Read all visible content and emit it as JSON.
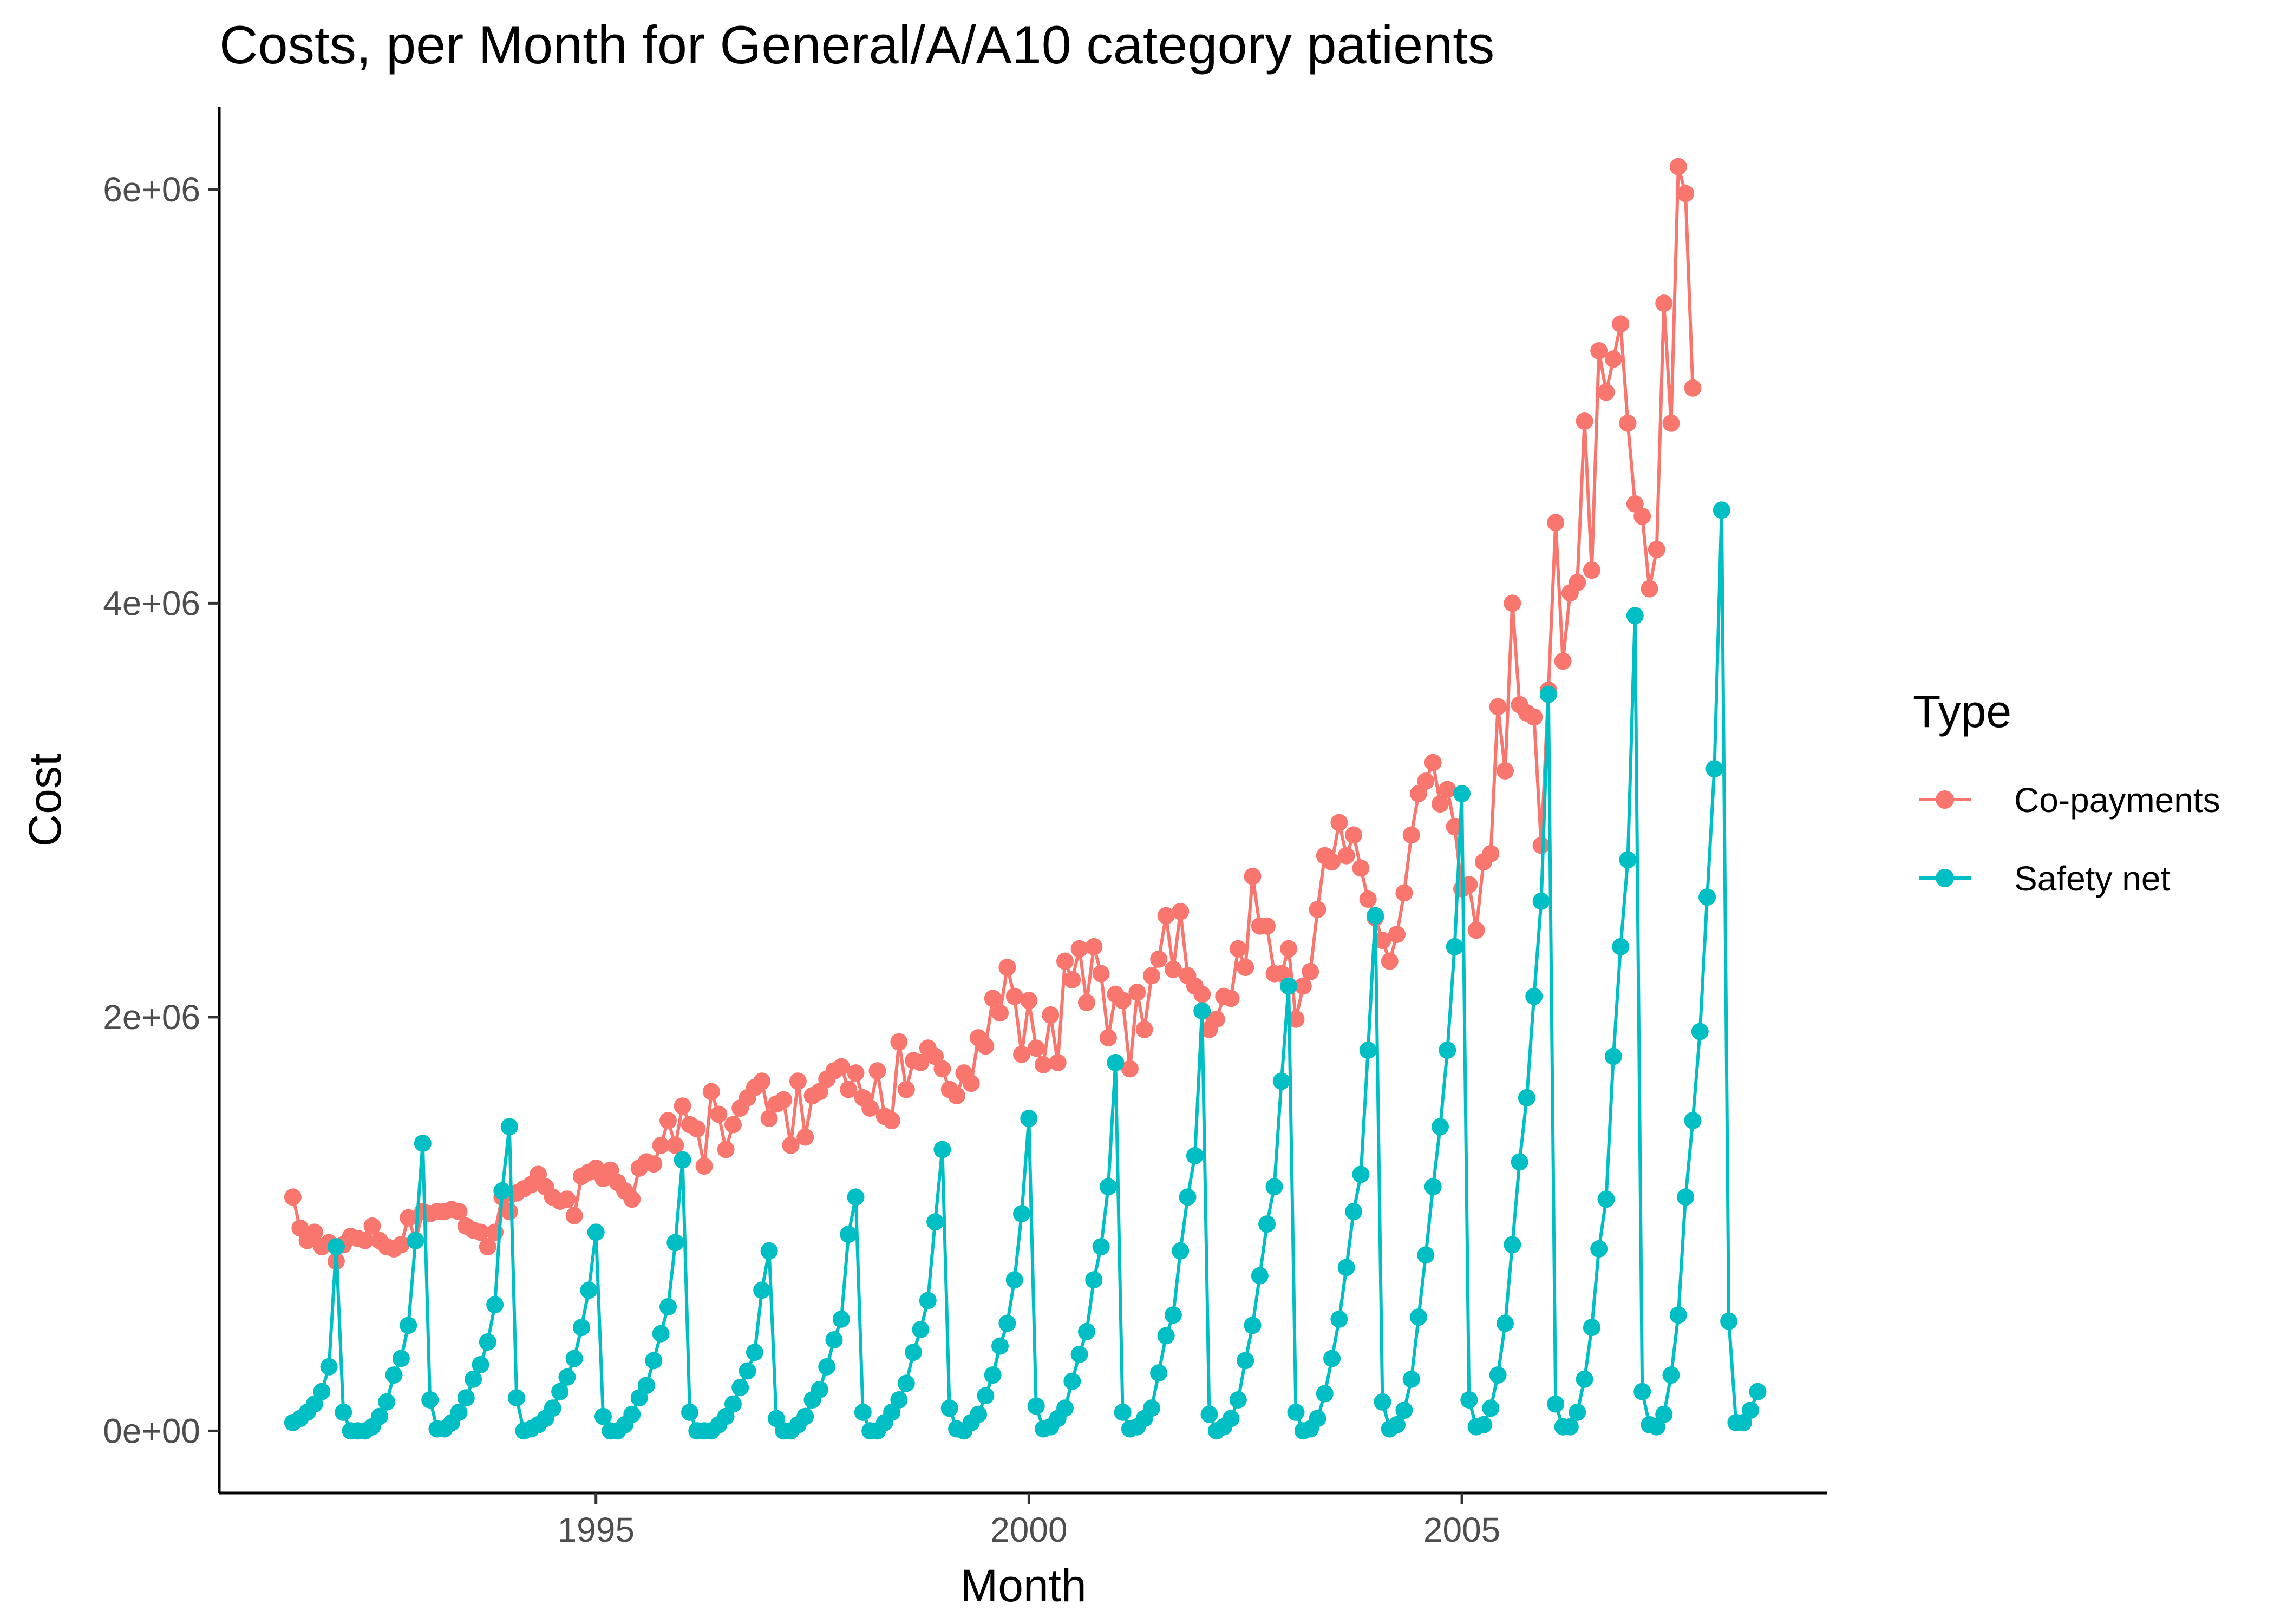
{
  "chart_data": {
    "type": "line",
    "title": "Costs, per Month for General/A/A10 category patients",
    "xlabel": "Month",
    "ylabel": "Cost",
    "xlim": [
      1990.65,
      2009.22
    ],
    "ylim": [
      -300000,
      6400000
    ],
    "x_ticks": [
      {
        "value": 1995,
        "label": "1995"
      },
      {
        "value": 2000,
        "label": "2000"
      },
      {
        "value": 2005,
        "label": "2005"
      }
    ],
    "y_ticks": [
      {
        "value": 0,
        "label": "0e+00"
      },
      {
        "value": 2000000,
        "label": "2e+06"
      },
      {
        "value": 4000000,
        "label": "4e+06"
      },
      {
        "value": 6000000,
        "label": "6e+06"
      }
    ],
    "grid": false,
    "legend": {
      "title": "Type",
      "position": "right"
    },
    "x_start": 1991.5,
    "x_step": 0.08333,
    "series": [
      {
        "name": "Co-payments",
        "color": "#F8766D",
        "values": [
          1130000,
          980000,
          920000,
          960000,
          890000,
          910000,
          820000,
          900000,
          940000,
          930000,
          920000,
          990000,
          920000,
          890000,
          880000,
          900000,
          1030000,
          920000,
          1060000,
          1050000,
          1060000,
          1060000,
          1070000,
          1060000,
          990000,
          970000,
          960000,
          890000,
          960000,
          1130000,
          1060000,
          1150000,
          1170000,
          1190000,
          1240000,
          1180000,
          1130000,
          1110000,
          1120000,
          1040000,
          1230000,
          1250000,
          1270000,
          1220000,
          1260000,
          1200000,
          1160000,
          1120000,
          1270000,
          1300000,
          1290000,
          1380000,
          1500000,
          1380000,
          1570000,
          1480000,
          1460000,
          1280000,
          1640000,
          1530000,
          1360000,
          1480000,
          1560000,
          1610000,
          1660000,
          1690000,
          1510000,
          1580000,
          1600000,
          1380000,
          1690000,
          1420000,
          1620000,
          1640000,
          1700000,
          1740000,
          1760000,
          1650000,
          1730000,
          1610000,
          1560000,
          1740000,
          1520000,
          1500000,
          1880000,
          1650000,
          1790000,
          1780000,
          1850000,
          1810000,
          1750000,
          1650000,
          1620000,
          1730000,
          1680000,
          1900000,
          1860000,
          2090000,
          2020000,
          2240000,
          2100000,
          1820000,
          2080000,
          1850000,
          1770000,
          2010000,
          1780000,
          2270000,
          2180000,
          2330000,
          2070000,
          2340000,
          2210000,
          1900000,
          2110000,
          2080000,
          1750000,
          2120000,
          1940000,
          2200000,
          2280000,
          2490000,
          2230000,
          2510000,
          2200000,
          2150000,
          2110000,
          1940000,
          1990000,
          2100000,
          2090000,
          2330000,
          2240000,
          2680000,
          2440000,
          2440000,
          2210000,
          2210000,
          2330000,
          1990000,
          2150000,
          2220000,
          2520000,
          2780000,
          2750000,
          2940000,
          2780000,
          2880000,
          2720000,
          2570000,
          2480000,
          2370000,
          2270000,
          2400000,
          2600000,
          2880000,
          3080000,
          3140000,
          3230000,
          3030000,
          3100000,
          2920000,
          2620000,
          2640000,
          2420000,
          2750000,
          2790000,
          3500000,
          3190000,
          4000000,
          3510000,
          3470000,
          3450000,
          2830000,
          3580000,
          4390000,
          3720000,
          4050000,
          4100000,
          4880000,
          4160000,
          5220000,
          5020000,
          5180000,
          5350000,
          4870000,
          4480000,
          4420000,
          4070000,
          4260000,
          5450000,
          4870000,
          6110000,
          5980000,
          5040000
        ]
      },
      {
        "name": "Safety net",
        "color": "#00BFC4",
        "values": [
          40000,
          60000,
          90000,
          130000,
          190000,
          310000,
          890000,
          90000,
          0,
          0,
          0,
          20000,
          70000,
          140000,
          270000,
          350000,
          510000,
          920000,
          1390000,
          150000,
          10000,
          10000,
          40000,
          90000,
          160000,
          250000,
          320000,
          430000,
          610000,
          1160000,
          1470000,
          160000,
          0,
          10000,
          30000,
          60000,
          110000,
          190000,
          260000,
          350000,
          500000,
          680000,
          960000,
          70000,
          0,
          0,
          30000,
          80000,
          160000,
          220000,
          340000,
          470000,
          600000,
          910000,
          1310000,
          90000,
          0,
          0,
          0,
          30000,
          70000,
          130000,
          210000,
          290000,
          380000,
          680000,
          870000,
          60000,
          0,
          0,
          30000,
          70000,
          150000,
          200000,
          310000,
          440000,
          540000,
          950000,
          1130000,
          90000,
          0,
          0,
          40000,
          90000,
          150000,
          230000,
          380000,
          490000,
          630000,
          1010000,
          1360000,
          110000,
          10000,
          0,
          40000,
          80000,
          170000,
          270000,
          410000,
          520000,
          730000,
          1050000,
          1510000,
          120000,
          10000,
          20000,
          60000,
          110000,
          240000,
          370000,
          480000,
          730000,
          890000,
          1180000,
          1780000,
          90000,
          10000,
          20000,
          60000,
          110000,
          280000,
          460000,
          560000,
          870000,
          1130000,
          1330000,
          2030000,
          80000,
          0,
          20000,
          60000,
          150000,
          340000,
          510000,
          750000,
          1000000,
          1180000,
          1690000,
          2150000,
          90000,
          0,
          10000,
          60000,
          180000,
          350000,
          540000,
          790000,
          1060000,
          1240000,
          1840000,
          2490000,
          140000,
          10000,
          30000,
          100000,
          250000,
          550000,
          850000,
          1180000,
          1470000,
          1840000,
          2340000,
          3080000,
          150000,
          20000,
          30000,
          110000,
          270000,
          520000,
          900000,
          1300000,
          1610000,
          2100000,
          2560000,
          3560000,
          130000,
          20000,
          20000,
          90000,
          250000,
          500000,
          880000,
          1120000,
          1810000,
          2340000,
          2760000,
          3940000,
          190000,
          30000,
          20000,
          80000,
          270000,
          560000,
          1130000,
          1500000,
          1930000,
          2580000,
          3200000,
          4450000,
          530000,
          40000,
          40000,
          100000,
          190000
        ]
      }
    ]
  }
}
